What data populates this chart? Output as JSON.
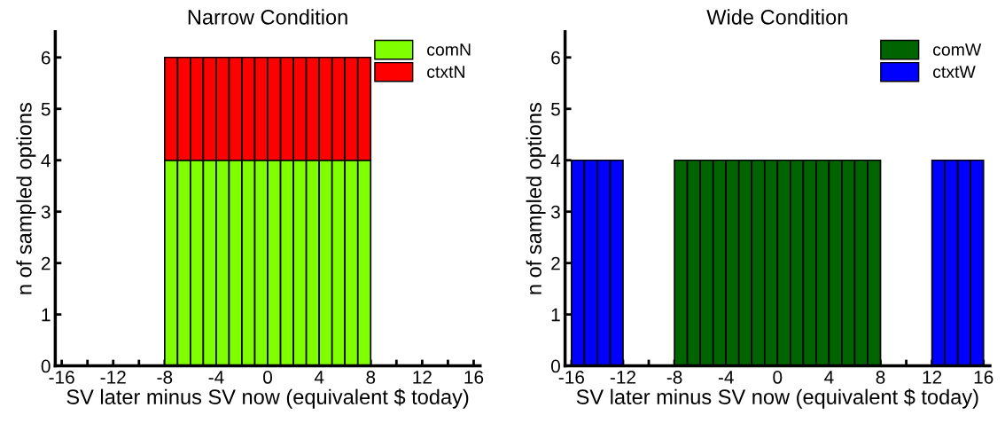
{
  "chart_data": [
    {
      "type": "bar",
      "title": "Narrow Condition",
      "xlabel": "SV later minus SV now (equivalent $ today)",
      "ylabel": "n of sampled options",
      "stacked": true,
      "x": [
        -7.5,
        -6.5,
        -5.5,
        -4.5,
        -3.5,
        -2.5,
        -1.5,
        -0.5,
        0.5,
        1.5,
        2.5,
        3.5,
        4.5,
        5.5,
        6.5,
        7.5
      ],
      "series": [
        {
          "name": "comN",
          "color": "#80ff00",
          "values": [
            4,
            4,
            4,
            4,
            4,
            4,
            4,
            4,
            4,
            4,
            4,
            4,
            4,
            4,
            4,
            4
          ]
        },
        {
          "name": "ctxtN",
          "color": "#ff0000",
          "values": [
            2,
            2,
            2,
            2,
            2,
            2,
            2,
            2,
            2,
            2,
            2,
            2,
            2,
            2,
            2,
            2
          ]
        }
      ],
      "xlim": [
        -16.5,
        16.5
      ],
      "xticks": [
        -16,
        {
          "value": -14,
          "label": null
        },
        -12,
        {
          "value": -10,
          "label": null
        },
        -8,
        {
          "value": -6,
          "label": null
        },
        -4,
        {
          "value": -2,
          "label": null
        },
        0,
        {
          "value": 2,
          "label": null
        },
        4,
        {
          "value": 6,
          "label": null
        },
        8,
        {
          "value": 10,
          "label": null
        },
        12,
        {
          "value": 14,
          "label": null
        },
        16
      ],
      "ylim": [
        0,
        6.5
      ],
      "yticks": [
        0,
        1,
        2,
        3,
        4,
        5,
        6
      ],
      "grid": false,
      "legend": "top right"
    },
    {
      "type": "bar",
      "title": "Wide Condition",
      "xlabel": "SV later minus SV now (equivalent $ today)",
      "ylabel": "n of sampled options",
      "series": [
        {
          "name": "comW",
          "color": "#006400",
          "x": [
            -7.5,
            -6.5,
            -5.5,
            -4.5,
            -3.5,
            -2.5,
            -1.5,
            -0.5,
            0.5,
            1.5,
            2.5,
            3.5,
            4.5,
            5.5,
            6.5,
            7.5
          ],
          "values": [
            4,
            4,
            4,
            4,
            4,
            4,
            4,
            4,
            4,
            4,
            4,
            4,
            4,
            4,
            4,
            4
          ]
        },
        {
          "name": "ctxtW",
          "color": "#0000ff",
          "x": [
            -15.5,
            -14.5,
            -13.5,
            -12.5,
            12.5,
            13.5,
            14.5,
            15.5
          ],
          "values": [
            4,
            4,
            4,
            4,
            4,
            4,
            4,
            4
          ]
        }
      ],
      "xlim": [
        -16.5,
        16.5
      ],
      "xticks": [
        -16,
        {
          "value": -14,
          "label": null
        },
        -12,
        {
          "value": -10,
          "label": null
        },
        -8,
        {
          "value": -6,
          "label": null
        },
        -4,
        {
          "value": -2,
          "label": null
        },
        0,
        {
          "value": 2,
          "label": null
        },
        4,
        {
          "value": 6,
          "label": null
        },
        8,
        {
          "value": 10,
          "label": null
        },
        12,
        {
          "value": 14,
          "label": null
        },
        16
      ],
      "ylim": [
        0,
        6.5
      ],
      "yticks": [
        0,
        1,
        2,
        3,
        4,
        5,
        6
      ],
      "grid": false,
      "legend": "top right"
    }
  ]
}
